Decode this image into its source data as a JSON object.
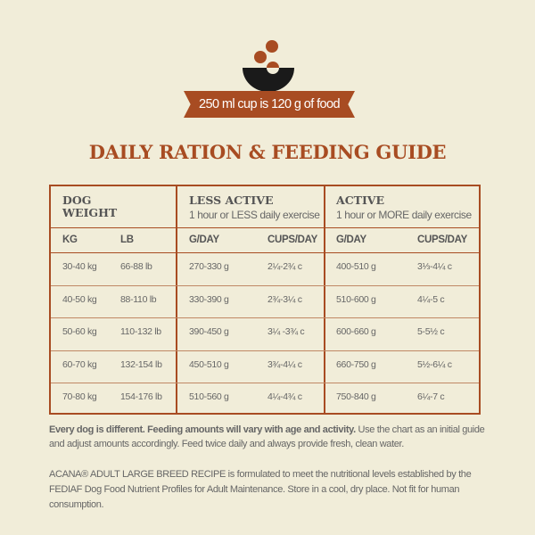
{
  "colors": {
    "brand": "#a84c22",
    "background": "#f1edd9",
    "bowl": "#1a1a1a"
  },
  "icon": "bowl-with-kibble-icon",
  "ribbon": "250 ml cup is 120 g of food",
  "title": "DAILY RATION & FEEDING GUIDE",
  "table": {
    "groups": [
      {
        "title_line1": "DOG",
        "title_line2": "WEIGHT",
        "cols": [
          "KG",
          "LB"
        ]
      },
      {
        "title": "LESS ACTIVE",
        "subtitle": "1 hour or LESS daily exercise",
        "cols": [
          "G/DAY",
          "CUPS/DAY"
        ]
      },
      {
        "title": "ACTIVE",
        "subtitle": "1 hour or MORE daily exercise",
        "cols": [
          "G/DAY",
          "CUPS/DAY"
        ]
      }
    ],
    "rows": [
      [
        "30-40 kg",
        "66-88 lb",
        "270-330 g",
        "2¼-2¾ c",
        "400-510 g",
        "3⅓-4¼ c"
      ],
      [
        "40-50 kg",
        "88-110 lb",
        "330-390 g",
        "2¾-3¼ c",
        "510-600 g",
        "4¼-5 c"
      ],
      [
        "50-60 kg",
        "110-132 lb",
        "390-450 g",
        "3¼ -3¾ c",
        "600-660 g",
        "5-5½ c"
      ],
      [
        "60-70 kg",
        "132-154 lb",
        "450-510 g",
        "3¾-4¼ c",
        "660-750 g",
        "5½-6¼ c"
      ],
      [
        "70-80 kg",
        "154-176 lb",
        "510-560 g",
        "4¼-4¾ c",
        "750-840 g",
        "6¼-7 c"
      ]
    ]
  },
  "note1_bold": "Every dog is different. Feeding amounts will vary with age and activity.",
  "note1_rest": " Use the chart as an initial guide and adjust amounts accordingly. Feed twice daily and always provide fresh, clean water.",
  "note2": "ACANA® ADULT LARGE BREED RECIPE is formulated to meet the nutritional levels established by the FEDIAF Dog  Food Nutrient Profiles for Adult Maintenance. Store in a cool, dry place. Not fit for human consumption."
}
